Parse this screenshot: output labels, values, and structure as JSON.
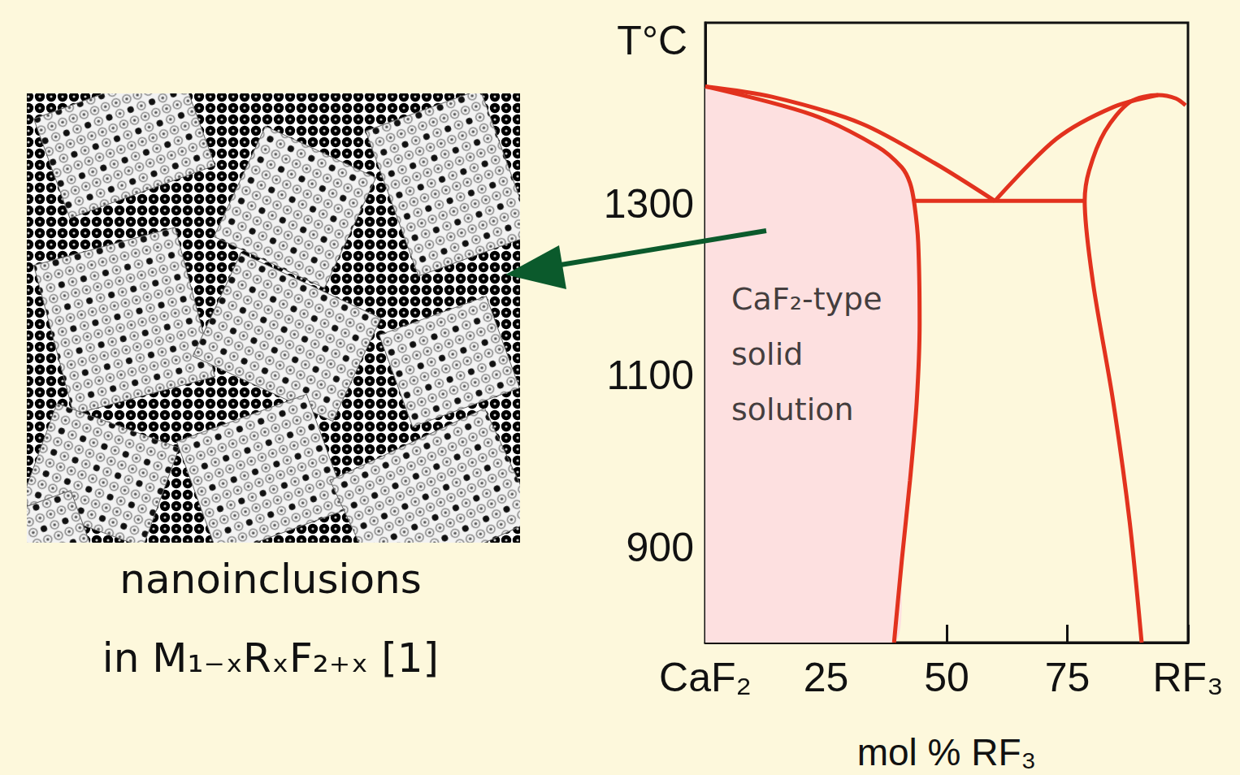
{
  "chart_data": {
    "type": "line",
    "x_label": "mol % RF₃",
    "y_label": "T°C",
    "xlim": [
      0,
      100
    ],
    "ylim": [
      790,
      1510
    ],
    "xticks": [
      {
        "value": 0,
        "label": "CaF₂"
      },
      25,
      50,
      75,
      {
        "value": 100,
        "label": "RF₃"
      }
    ],
    "yticks": [
      900,
      1100,
      1300
    ],
    "grid": false,
    "series": [
      {
        "type": "area",
        "color": "#e2321e",
        "line_style": "solid",
        "x": [
          0,
          22.2,
          35.7,
          40.7,
          42.4,
          43.3,
          44.1,
          44.4,
          43.8,
          42.4,
          40.7,
          39.1
        ],
        "values": [
          1436,
          1403,
          1366,
          1342,
          1324,
          1300,
          1255,
          1162,
          1070,
          978,
          885,
          790
        ]
      },
      {
        "type": "line",
        "color": "#e2321e",
        "line_style": "solid",
        "x": [
          0,
          13.8,
          32.3,
          47.5,
          60
        ],
        "values": [
          1436,
          1424,
          1393,
          1347,
          1303
        ]
      },
      {
        "type": "line",
        "color": "#e2321e",
        "line_style": "solid",
        "x": [
          43.3,
          78.6
        ],
        "values": [
          1303,
          1303
        ]
      },
      {
        "type": "line",
        "color": "#e2321e",
        "line_style": "solid",
        "x": [
          60,
          72.7,
          84.5,
          93.8
        ],
        "values": [
          1303,
          1375,
          1412,
          1426
        ]
      },
      {
        "type": "line",
        "color": "#e2321e",
        "line_style": "solid",
        "x": [
          99.5,
          97.5,
          93.8,
          88,
          82.8,
          79.5,
          78.6,
          80.3,
          84.5,
          87.9,
          90.4
        ],
        "values": [
          1414,
          1422,
          1426,
          1418,
          1384,
          1338,
          1303,
          1209,
          1070,
          931,
          790
        ]
      }
    ],
    "annotations": [
      {
        "text": "CaF₂-type solid solution",
        "x": 5.4,
        "y": 1125
      }
    ]
  },
  "panel_caption": [
    "nanoinclusions",
    "in M₁₋ₓRₓF₂₊ₓ [1]"
  ]
}
